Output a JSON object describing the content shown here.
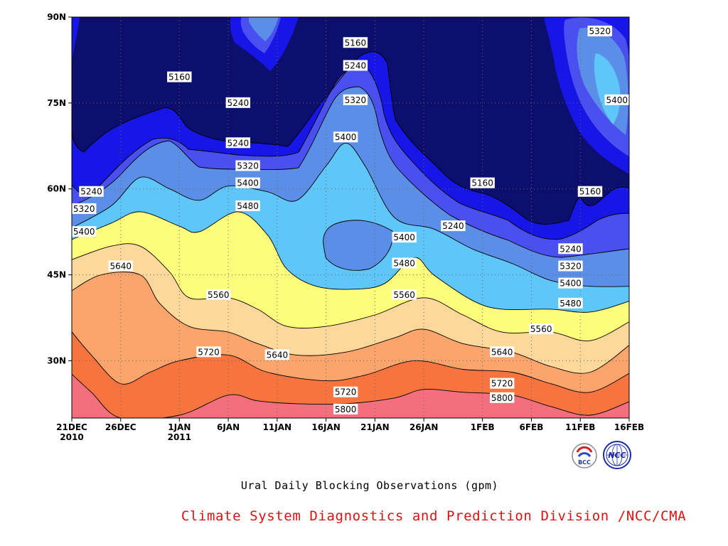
{
  "chart_data": {
    "type": "heatmap",
    "subtype": "filled-contour",
    "title": "Ural Daily Blocking Observations (gpm)",
    "credit": "Climate System Diagnostics and Prediction Division /NCC/CMA",
    "logos": [
      "BCC",
      "NCC"
    ],
    "x_axis": {
      "range": [
        "2010-12-21",
        "2011-02-16"
      ],
      "ticks": [
        {
          "date": "2010-12-21",
          "label": "21DEC",
          "sub": "2010"
        },
        {
          "date": "2010-12-26",
          "label": "26DEC",
          "sub": ""
        },
        {
          "date": "2011-01-01",
          "label": "1JAN",
          "sub": "2011"
        },
        {
          "date": "2011-01-06",
          "label": "6JAN",
          "sub": ""
        },
        {
          "date": "2011-01-11",
          "label": "11JAN",
          "sub": ""
        },
        {
          "date": "2011-01-16",
          "label": "16JAN",
          "sub": ""
        },
        {
          "date": "2011-01-21",
          "label": "21JAN",
          "sub": ""
        },
        {
          "date": "2011-01-26",
          "label": "26JAN",
          "sub": ""
        },
        {
          "date": "2011-02-01",
          "label": "1FEB",
          "sub": ""
        },
        {
          "date": "2011-02-06",
          "label": "6FEB",
          "sub": ""
        },
        {
          "date": "2011-02-11",
          "label": "11FEB",
          "sub": ""
        },
        {
          "date": "2011-02-16",
          "label": "16FEB",
          "sub": ""
        }
      ]
    },
    "y_axis": {
      "range": [
        20,
        90
      ],
      "units": "degrees north",
      "ticks": [
        {
          "value": 30,
          "label": "30N"
        },
        {
          "value": 45,
          "label": "45N"
        },
        {
          "value": 60,
          "label": "60N"
        },
        {
          "value": 75,
          "label": "75N"
        },
        {
          "value": 90,
          "label": "90N"
        }
      ]
    },
    "grid": true,
    "contour_levels": [
      5160,
      5240,
      5320,
      5400,
      5480,
      5560,
      5640,
      5720,
      5800
    ],
    "fill_colors": [
      "#0d0f6e",
      "#1616e6",
      "#4a4ff0",
      "#5b8ee6",
      "#5ec6f8",
      "#fdfd7c",
      "#fdd89a",
      "#fba46b",
      "#f8743f",
      "#f36f7e"
    ],
    "contour_lines": [
      {
        "level": 5800,
        "points": [
          [
            "2010-12-21",
            28
          ],
          [
            "2010-12-23",
            24.5
          ],
          [
            "2010-12-26",
            20
          ],
          [
            "2011-01-01",
            20.5
          ],
          [
            "2011-01-06",
            24
          ],
          [
            "2011-01-09",
            23
          ],
          [
            "2011-01-13",
            22.5
          ],
          [
            "2011-01-18",
            22.5
          ],
          [
            "2011-01-23",
            23.5
          ],
          [
            "2011-01-26",
            25
          ],
          [
            "2011-01-30",
            24.5
          ],
          [
            "2011-02-04",
            24
          ],
          [
            "2011-02-08",
            22
          ],
          [
            "2011-02-12",
            20.5
          ],
          [
            "2011-02-16",
            23
          ]
        ]
      },
      {
        "level": 5720,
        "points": [
          [
            "2010-12-21",
            35.5
          ],
          [
            "2010-12-23",
            31
          ],
          [
            "2010-12-26",
            26
          ],
          [
            "2010-12-29",
            28
          ],
          [
            "2011-01-01",
            30
          ],
          [
            "2011-01-06",
            31
          ],
          [
            "2011-01-10",
            28
          ],
          [
            "2011-01-16",
            26.5
          ],
          [
            "2011-01-20",
            27.5
          ],
          [
            "2011-01-25",
            30
          ],
          [
            "2011-01-30",
            28.5
          ],
          [
            "2011-02-04",
            28
          ],
          [
            "2011-02-08",
            26
          ],
          [
            "2011-02-12",
            24.5
          ],
          [
            "2011-02-16",
            28
          ]
        ]
      },
      {
        "level": 5640,
        "points": [
          [
            "2010-12-21",
            42
          ],
          [
            "2010-12-24",
            45
          ],
          [
            "2010-12-28",
            45
          ],
          [
            "2010-12-30",
            40
          ],
          [
            "2011-01-02",
            36
          ],
          [
            "2011-01-06",
            35
          ],
          [
            "2011-01-09",
            33
          ],
          [
            "2011-01-13",
            31
          ],
          [
            "2011-01-18",
            31.5
          ],
          [
            "2011-01-23",
            34
          ],
          [
            "2011-01-26",
            35.5
          ],
          [
            "2011-01-30",
            33
          ],
          [
            "2011-02-04",
            31.5
          ],
          [
            "2011-02-08",
            29
          ],
          [
            "2011-02-12",
            28
          ],
          [
            "2011-02-16",
            33
          ]
        ]
      },
      {
        "level": 5560,
        "points": [
          [
            "2010-12-21",
            47.5
          ],
          [
            "2010-12-25",
            50
          ],
          [
            "2010-12-28",
            50
          ],
          [
            "2010-12-31",
            45.5
          ],
          [
            "2011-01-02",
            41
          ],
          [
            "2011-01-06",
            41
          ],
          [
            "2011-01-09",
            39
          ],
          [
            "2011-01-12",
            36
          ],
          [
            "2011-01-16",
            36
          ],
          [
            "2011-01-21",
            38
          ],
          [
            "2011-01-26",
            41
          ],
          [
            "2011-01-30",
            38
          ],
          [
            "2011-02-03",
            35
          ],
          [
            "2011-02-08",
            35
          ],
          [
            "2011-02-12",
            33.5
          ],
          [
            "2011-02-16",
            37
          ]
        ]
      },
      {
        "level": 5480,
        "points": [
          [
            "2010-12-21",
            51
          ],
          [
            "2010-12-25",
            54
          ],
          [
            "2010-12-28",
            56
          ],
          [
            "2011-01-01",
            53.5
          ],
          [
            "2011-01-03",
            52.5
          ],
          [
            "2011-01-07",
            56
          ],
          [
            "2011-01-10",
            52
          ],
          [
            "2011-01-12",
            46
          ],
          [
            "2011-01-15",
            43
          ],
          [
            "2011-01-19",
            42.5
          ],
          [
            "2011-01-22",
            43.5
          ],
          [
            "2011-01-25",
            48
          ],
          [
            "2011-01-27",
            45
          ],
          [
            "2011-01-31",
            40.5
          ],
          [
            "2011-02-03",
            39
          ],
          [
            "2011-02-08",
            39
          ],
          [
            "2011-02-12",
            38.5
          ],
          [
            "2011-02-16",
            40.5
          ]
        ]
      },
      {
        "level": 5400,
        "points": [
          [
            "2010-12-21",
            53
          ],
          [
            "2010-12-25",
            57
          ],
          [
            "2010-12-28",
            62
          ],
          [
            "2010-12-31",
            60
          ],
          [
            "2011-01-03",
            58
          ],
          [
            "2011-01-06",
            60.5
          ],
          [
            "2011-01-10",
            59.5
          ],
          [
            "2011-01-13",
            58
          ],
          [
            "2011-01-16",
            64
          ],
          [
            "2011-01-18",
            68
          ],
          [
            "2011-01-20",
            64
          ],
          [
            "2011-01-23",
            55
          ],
          [
            "2011-01-27",
            53
          ],
          [
            "2011-01-31",
            49.5
          ],
          [
            "2011-02-04",
            47
          ],
          [
            "2011-02-08",
            44
          ],
          [
            "2011-02-12",
            43
          ],
          [
            "2011-02-16",
            43
          ]
        ]
      }
    ],
    "contour_labels": [
      {
        "level": 5160,
        "date": "2011-01-01",
        "lat": 79.5
      },
      {
        "level": 5160,
        "date": "2011-01-19",
        "lat": 85.5
      },
      {
        "level": 5160,
        "date": "2011-02-01",
        "lat": 61
      },
      {
        "level": 5160,
        "date": "2011-02-12",
        "lat": 59.5
      },
      {
        "level": 5240,
        "date": "2010-12-23",
        "lat": 59.5
      },
      {
        "level": 5240,
        "date": "2011-01-07",
        "lat": 75
      },
      {
        "level": 5240,
        "date": "2011-01-07",
        "lat": 68
      },
      {
        "level": 5240,
        "date": "2011-01-19",
        "lat": 81.5
      },
      {
        "level": 5240,
        "date": "2011-01-29",
        "lat": 53.5
      },
      {
        "level": 5240,
        "date": "2011-02-10",
        "lat": 49.5
      },
      {
        "level": 5320,
        "date": "2010-12-21",
        "lat": 56.5
      },
      {
        "level": 5320,
        "date": "2011-01-08",
        "lat": 64
      },
      {
        "level": 5320,
        "date": "2011-01-19",
        "lat": 75.5
      },
      {
        "level": 5320,
        "date": "2011-02-10",
        "lat": 46.5
      },
      {
        "level": 5320,
        "date": "2011-02-13",
        "lat": 87.5
      },
      {
        "level": 5400,
        "date": "2010-12-21",
        "lat": 52.5
      },
      {
        "level": 5400,
        "date": "2011-01-08",
        "lat": 61
      },
      {
        "level": 5400,
        "date": "2011-01-18",
        "lat": 69
      },
      {
        "level": 5400,
        "date": "2011-01-24",
        "lat": 51.5
      },
      {
        "level": 5400,
        "date": "2011-02-10",
        "lat": 43.5
      },
      {
        "level": 5400,
        "date": "2011-02-15",
        "lat": 75.5
      },
      {
        "level": 5480,
        "date": "2011-01-08",
        "lat": 57
      },
      {
        "level": 5480,
        "date": "2011-01-24",
        "lat": 47
      },
      {
        "level": 5480,
        "date": "2011-02-10",
        "lat": 40
      },
      {
        "level": 5560,
        "date": "2011-01-05",
        "lat": 41.5
      },
      {
        "level": 5560,
        "date": "2011-01-24",
        "lat": 41.5
      },
      {
        "level": 5560,
        "date": "2011-02-07",
        "lat": 35.5
      },
      {
        "level": 5640,
        "date": "2010-12-26",
        "lat": 46.5
      },
      {
        "level": 5640,
        "date": "2011-01-11",
        "lat": 31
      },
      {
        "level": 5640,
        "date": "2011-02-03",
        "lat": 31.5
      },
      {
        "level": 5720,
        "date": "2011-01-04",
        "lat": 31.5
      },
      {
        "level": 5720,
        "date": "2011-01-18",
        "lat": 24.5
      },
      {
        "level": 5720,
        "date": "2011-02-03",
        "lat": 26
      },
      {
        "level": 5800,
        "date": "2011-01-18",
        "lat": 21.5
      },
      {
        "level": 5800,
        "date": "2011-02-03",
        "lat": 23.5
      }
    ]
  }
}
